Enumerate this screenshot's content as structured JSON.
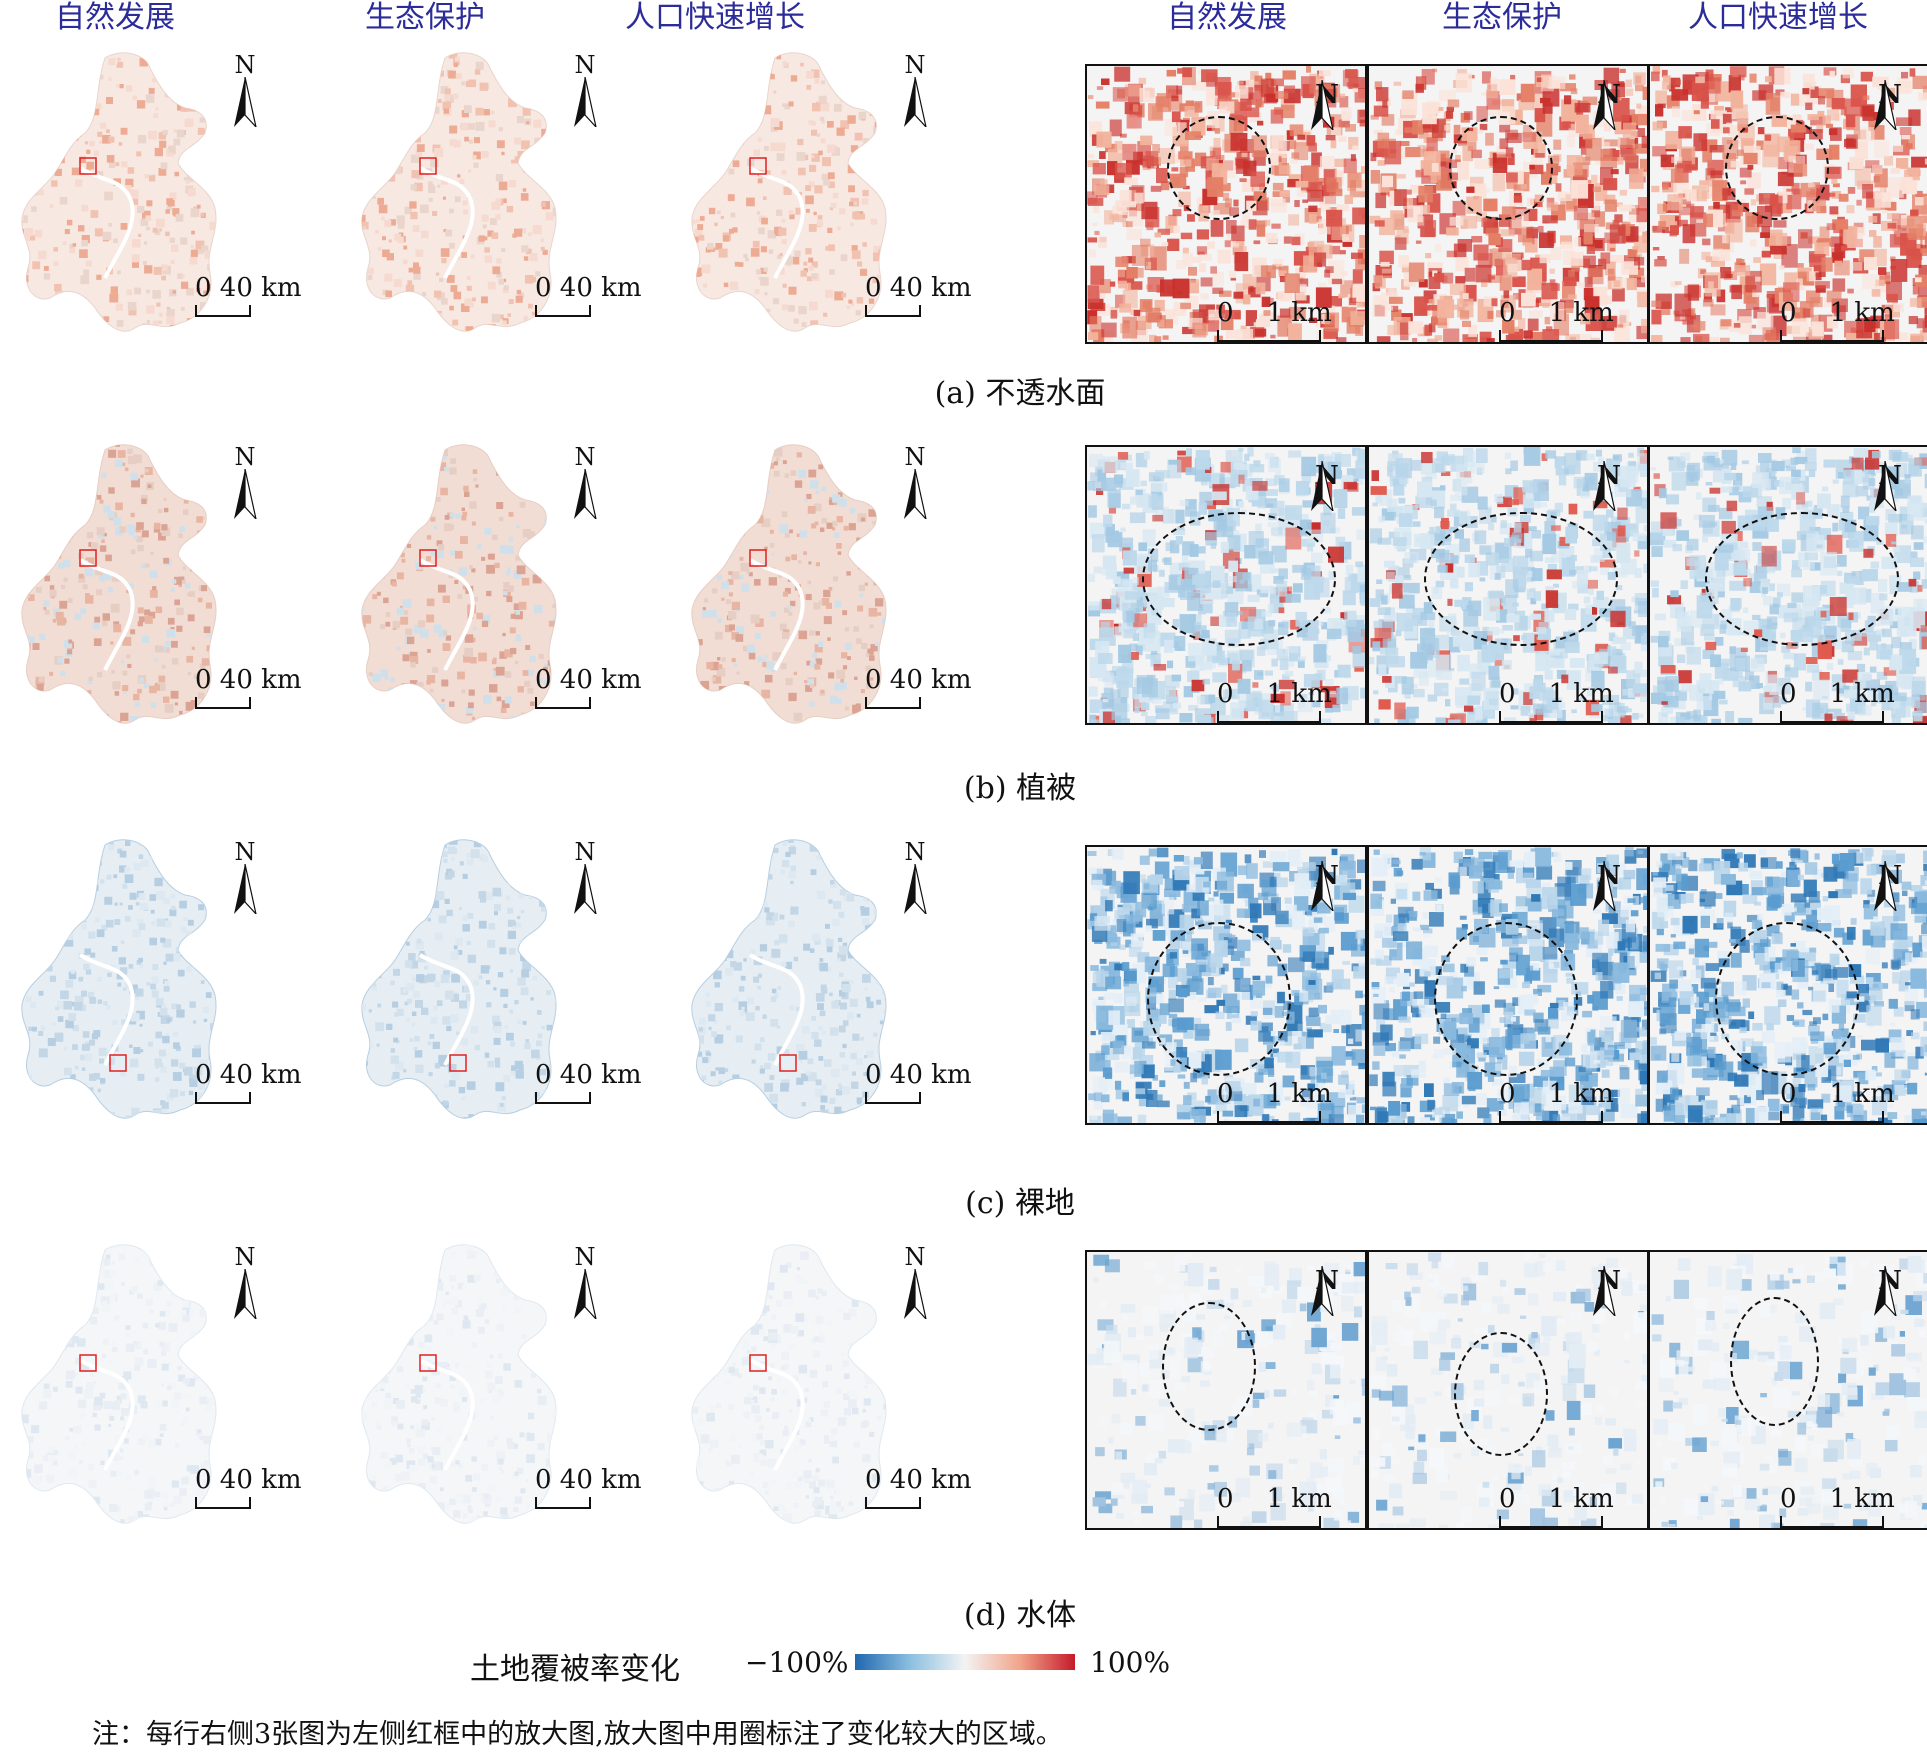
{
  "headers": {
    "left": [
      "自然发展",
      "生态保护",
      "人口快速增长"
    ],
    "right": [
      "自然发展",
      "生态保护",
      "人口快速增长"
    ]
  },
  "north_label": "N",
  "scale_city": "0  40 km",
  "scale_zoom": "0    1 km",
  "rows": [
    {
      "caption": "(a) 不透水面",
      "tone": "red"
    },
    {
      "caption": "(b) 植被",
      "tone": "mixed"
    },
    {
      "caption": "(c) 裸地",
      "tone": "blue"
    },
    {
      "caption": "(d) 水体",
      "tone": "lightblue"
    }
  ],
  "legend": {
    "title": "土地覆被率变化",
    "min": "−100%",
    "max": "100%",
    "colors": [
      "#1f67b0",
      "#f3f3f3",
      "#c51a2a"
    ]
  },
  "note": "注：每行右侧3张图为左侧红框中的放大图,放大图中用圈标注了变化较大的区域。"
}
